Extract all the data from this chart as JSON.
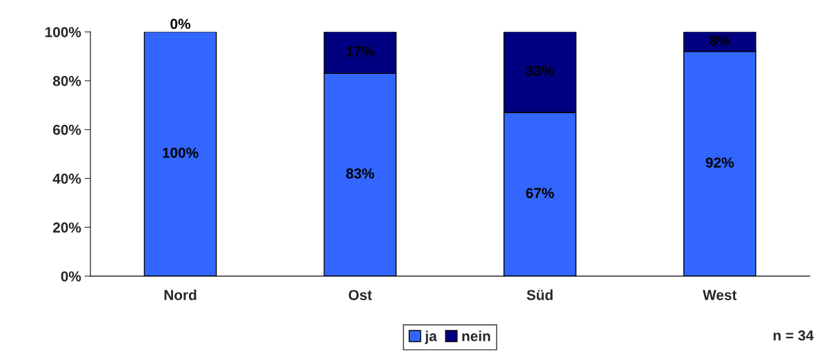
{
  "chart_data": {
    "type": "bar",
    "stacked": true,
    "categories": [
      "Nord",
      "Ost",
      "Süd",
      "West"
    ],
    "series": [
      {
        "name": "ja",
        "color": "#3366ff",
        "values": [
          100,
          83,
          67,
          92
        ],
        "value_labels": [
          "100%",
          "83%",
          "67%",
          "92%"
        ]
      },
      {
        "name": "nein",
        "color": "#000080",
        "values": [
          0,
          17,
          33,
          8
        ],
        "value_labels": [
          "0%",
          "17%",
          "33%",
          "8%"
        ]
      }
    ],
    "ylim": [
      0,
      100
    ],
    "yticks": [
      {
        "value": 0,
        "label": "0%"
      },
      {
        "value": 20,
        "label": "20%"
      },
      {
        "value": 40,
        "label": "40%"
      },
      {
        "value": 60,
        "label": "60%"
      },
      {
        "value": 80,
        "label": "80%"
      },
      {
        "value": 100,
        "label": "100%"
      }
    ],
    "grid": false,
    "legend": "bottom",
    "annotations": [
      "n = 34"
    ]
  }
}
